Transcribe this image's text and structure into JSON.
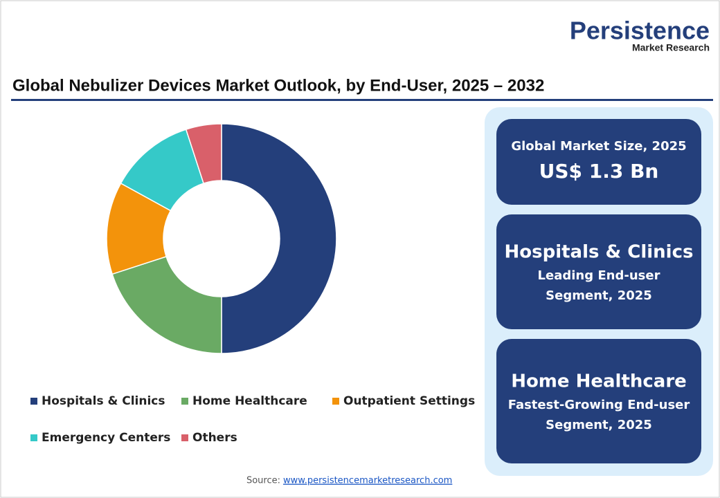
{
  "logo": {
    "name": "Persistence",
    "tagline": "Market Research"
  },
  "chart_data": {
    "type": "pie",
    "donut": true,
    "title": "Global Nebulizer Devices Market Outlook, by End-User, 2025 – 2032",
    "categories": [
      "Hospitals & Clinics",
      "Home Healthcare",
      "Outpatient Settings",
      "Emergency Centers",
      "Others"
    ],
    "values": [
      50,
      20,
      13,
      12,
      5
    ],
    "colors": [
      "#243f7b",
      "#6aaa64",
      "#f3930b",
      "#35c9c8",
      "#d9606a"
    ]
  },
  "cards": [
    {
      "label": "Global Market Size, 2025",
      "value": "US$ 1.3 Bn"
    },
    {
      "heading": "Hospitals & Clinics",
      "lines": [
        "Leading End-user",
        "Segment, 2025"
      ]
    },
    {
      "heading": "Home Healthcare",
      "lines": [
        "Fastest-Growing End-user",
        "Segment, 2025"
      ]
    }
  ],
  "source": {
    "label": "Source:",
    "link": "www.persistencemarketresearch.com"
  }
}
